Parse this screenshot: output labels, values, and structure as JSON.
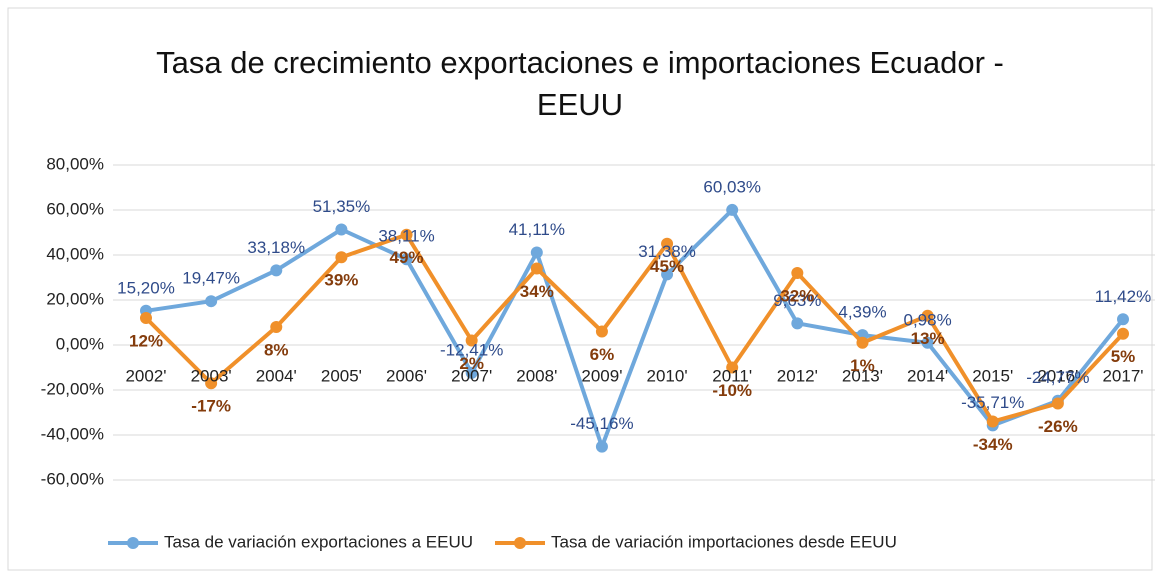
{
  "chart_data": {
    "type": "line",
    "title": "Tasa de crecimiento exportaciones e importaciones Ecuador - EEUU",
    "categories": [
      "2002'",
      "2003'",
      "2004'",
      "2005'",
      "2006'",
      "2007'",
      "2008'",
      "2009'",
      "2010'",
      "2011'",
      "2012'",
      "2013'",
      "2014'",
      "2015'",
      "2016'",
      "2017'"
    ],
    "series": [
      {
        "name": "Tasa de variación exportaciones a EEUU",
        "color": "#6fa8dc",
        "label_color": "#2f4b8a",
        "values": [
          15.2,
          19.47,
          33.18,
          51.35,
          38.11,
          -12.41,
          41.11,
          -45.16,
          31.38,
          60.03,
          9.63,
          4.39,
          0.98,
          -35.71,
          -24.77,
          11.42
        ],
        "value_labels": [
          "15,20%",
          "19,47%",
          "33,18%",
          "51,35%",
          "38,11%",
          "-12,41%",
          "41,11%",
          "-45,16%",
          "31,38%",
          "60,03%",
          "9,63%",
          "4,39%",
          "0,98%",
          "-35,71%",
          "-24,77%",
          "11,42%"
        ]
      },
      {
        "name": "Tasa de variación importaciones desde EEUU",
        "color": "#f0902a",
        "label_color": "#843c0c",
        "values": [
          12,
          -17,
          8,
          39,
          49,
          2,
          34,
          6,
          45,
          -10,
          32,
          1,
          13,
          -34,
          -26,
          5
        ],
        "value_labels": [
          "12%",
          "-17%",
          "8%",
          "39%",
          "49%",
          "2%",
          "34%",
          "6%",
          "45%",
          "-10%",
          "32%",
          "1%",
          "13%",
          "-34%",
          "-26%",
          "5%"
        ]
      }
    ],
    "ylim": [
      -60,
      80
    ],
    "yticks": [
      {
        "value": -60,
        "label": "-60,00%"
      },
      {
        "value": -40,
        "label": "-40,00%"
      },
      {
        "value": -20,
        "label": "-20,00%"
      },
      {
        "value": 0,
        "label": "0,00%"
      },
      {
        "value": 20,
        "label": "20,00%"
      },
      {
        "value": 40,
        "label": "40,00%"
      },
      {
        "value": 60,
        "label": "60,00%"
      },
      {
        "value": 80,
        "label": "80,00%"
      }
    ],
    "grid": true,
    "legend": "bottom"
  }
}
